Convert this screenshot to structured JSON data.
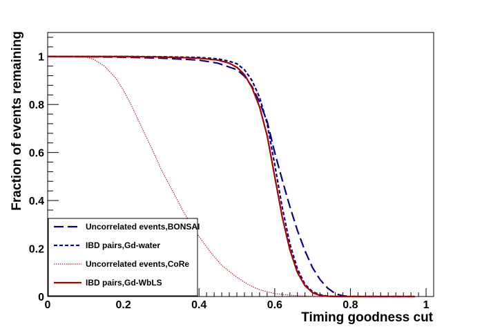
{
  "chart_data": {
    "type": "line",
    "title": "",
    "xlabel": "Timing goodness cut",
    "ylabel": "Fraction of events remaining",
    "xlim": [
      0,
      1.02
    ],
    "ylim": [
      0,
      1.1
    ],
    "xticks": [
      0,
      0.2,
      0.4,
      0.6,
      0.8,
      1
    ],
    "xtick_labels": [
      "0",
      "0.2",
      "0.4",
      "0.6",
      "0.8",
      "1"
    ],
    "yticks": [
      0,
      0.2,
      0.4,
      0.6,
      0.8,
      1
    ],
    "ytick_labels": [
      "0",
      "0.2",
      "0.4",
      "0.6",
      "0.8",
      "1"
    ],
    "grid": false,
    "legend_position": "bottom-left",
    "series": [
      {
        "name": "Uncorrelated events,BONSAI",
        "color": "#00008b",
        "style": "long-dash",
        "x": [
          0,
          0.1,
          0.2,
          0.3,
          0.4,
          0.45,
          0.5,
          0.52,
          0.54,
          0.56,
          0.58,
          0.6,
          0.62,
          0.64,
          0.66,
          0.68,
          0.7,
          0.72,
          0.74,
          0.76,
          0.78,
          0.8,
          0.85,
          0.9,
          0.95,
          0.97
        ],
        "y": [
          1,
          0.999,
          0.997,
          0.993,
          0.985,
          0.972,
          0.945,
          0.918,
          0.875,
          0.81,
          0.73,
          0.6,
          0.485,
          0.375,
          0.275,
          0.19,
          0.12,
          0.07,
          0.035,
          0.012,
          0.003,
          0.0005,
          0,
          0,
          0,
          0
        ]
      },
      {
        "name": "IBD pairs,Gd-water",
        "color": "#00008b",
        "style": "short-dash",
        "x": [
          0,
          0.1,
          0.2,
          0.3,
          0.4,
          0.45,
          0.48,
          0.5,
          0.52,
          0.54,
          0.56,
          0.58,
          0.6,
          0.62,
          0.64,
          0.66,
          0.68,
          0.7,
          0.72,
          0.74,
          0.76,
          0.8,
          0.9,
          0.97
        ],
        "y": [
          1,
          1,
          1,
          0.999,
          0.996,
          0.99,
          0.98,
          0.97,
          0.945,
          0.9,
          0.83,
          0.72,
          0.55,
          0.37,
          0.22,
          0.115,
          0.05,
          0.02,
          0.007,
          0.002,
          0.0005,
          0,
          0,
          0
        ]
      },
      {
        "name": "Uncorrelated events,CoRe",
        "color": "#b22222",
        "style": "dotted",
        "x": [
          0,
          0.05,
          0.1,
          0.12,
          0.15,
          0.18,
          0.2,
          0.22,
          0.25,
          0.28,
          0.3,
          0.33,
          0.36,
          0.4,
          0.43,
          0.46,
          0.5,
          0.53,
          0.56,
          0.6,
          0.65,
          0.7,
          0.75,
          0.8,
          0.9,
          0.97
        ],
        "y": [
          1,
          1,
          0.997,
          0.99,
          0.96,
          0.91,
          0.86,
          0.8,
          0.7,
          0.6,
          0.53,
          0.44,
          0.35,
          0.25,
          0.185,
          0.13,
          0.08,
          0.05,
          0.028,
          0.012,
          0.004,
          0.001,
          0,
          0,
          0,
          0
        ]
      },
      {
        "name": "IBD pairs,Gd-WbLS",
        "color": "#aa0000",
        "style": "solid",
        "x": [
          0,
          0.1,
          0.2,
          0.3,
          0.4,
          0.45,
          0.48,
          0.5,
          0.52,
          0.54,
          0.56,
          0.58,
          0.6,
          0.62,
          0.64,
          0.66,
          0.68,
          0.7,
          0.72,
          0.74,
          0.76,
          0.8,
          0.9,
          0.97
        ],
        "y": [
          1,
          1,
          1,
          0.998,
          0.993,
          0.985,
          0.972,
          0.955,
          0.925,
          0.87,
          0.79,
          0.67,
          0.5,
          0.33,
          0.195,
          0.1,
          0.045,
          0.016,
          0.004,
          0.001,
          0,
          0,
          0,
          0
        ]
      }
    ]
  }
}
